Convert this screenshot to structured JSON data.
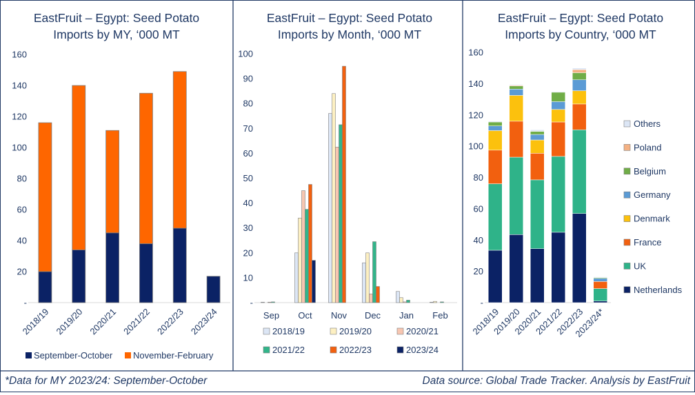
{
  "footer": {
    "note": "*Data for MY 2023/24: September-October",
    "source": "Data source: Global Trade Tracker. Analysis by EastFruit"
  },
  "chart_data": [
    {
      "type": "bar",
      "stacked": true,
      "title_lines": [
        "EastFruit – Egypt: Seed Potato",
        "Imports by MY, ‘000 MT"
      ],
      "categories": [
        "2018/19",
        "2019/20",
        "2020/21",
        "2021/22",
        "2022/23",
        "2023/24"
      ],
      "series": [
        {
          "name": "September-October",
          "color": "#0b2265",
          "values": [
            20,
            34,
            45,
            38,
            48,
            17
          ]
        },
        {
          "name": "November-February",
          "color": "#fe6600",
          "values": [
            96,
            106,
            66,
            97,
            101,
            0
          ]
        }
      ],
      "ylim": [
        0,
        160
      ],
      "yticks": [
        0,
        20,
        40,
        60,
        80,
        100,
        120,
        140,
        160
      ],
      "ytick_labels": [
        "-",
        "20",
        "40",
        "60",
        "80",
        "100",
        "120",
        "140",
        "160"
      ],
      "legend_position": "bottom"
    },
    {
      "type": "bar",
      "title_lines": [
        "EastFruit – Egypt: Seed Potato",
        "Imports by Month, ‘000 MT"
      ],
      "categories": [
        "Sep",
        "Oct",
        "Nov",
        "Dec",
        "Jan",
        "Feb"
      ],
      "series": [
        {
          "name": "2018/19",
          "color": "#dce6f5",
          "values": [
            0.2,
            20,
            76,
            16,
            4.5,
            0.2
          ]
        },
        {
          "name": "2019/20",
          "color": "#fdf0c2",
          "values": [
            0,
            34,
            84,
            20,
            2,
            0.5
          ]
        },
        {
          "name": "2020/21",
          "color": "#f7c6b1",
          "values": [
            0.2,
            45,
            62.5,
            3.5,
            0.3,
            0
          ]
        },
        {
          "name": "2021/22",
          "color": "#32b58a",
          "values": [
            0.3,
            37.5,
            71.5,
            24.5,
            1,
            0.3
          ]
        },
        {
          "name": "2022/23",
          "color": "#f2600f",
          "values": [
            0,
            47.5,
            95,
            6.5,
            0,
            0
          ]
        },
        {
          "name": "2023/24",
          "color": "#0b2265",
          "values": [
            0,
            17,
            0,
            0,
            0,
            0
          ]
        }
      ],
      "ylim": [
        0,
        100
      ],
      "yticks": [
        0,
        10,
        20,
        30,
        40,
        50,
        60,
        70,
        80,
        90,
        100
      ],
      "ytick_labels": [
        "-",
        "10",
        "20",
        "30",
        "40",
        "50",
        "60",
        "70",
        "80",
        "90",
        "100"
      ],
      "legend_position": "bottom"
    },
    {
      "type": "bar",
      "stacked": true,
      "title_lines": [
        "EastFruit – Egypt: Seed Potato",
        "Imports by Country, ‘000 MT"
      ],
      "categories": [
        "2018/19",
        "2019/20",
        "2020/21",
        "2021/22",
        "2022/23",
        "2023/24*"
      ],
      "series": [
        {
          "name": "Netherlands",
          "color": "#0b2265",
          "values": [
            33.5,
            43.5,
            34.5,
            45,
            57,
            1
          ]
        },
        {
          "name": "UK",
          "color": "#2fb389",
          "values": [
            42.5,
            49.5,
            44,
            48.5,
            53.5,
            8
          ]
        },
        {
          "name": "France",
          "color": "#f2600f",
          "values": [
            21.5,
            23,
            17,
            22,
            16.5,
            4.5
          ]
        },
        {
          "name": "Denmark",
          "color": "#fcc10d",
          "values": [
            12.5,
            16.5,
            8.5,
            8,
            8.5,
            0
          ]
        },
        {
          "name": "Germany",
          "color": "#5b9bd5",
          "values": [
            3,
            4,
            3.5,
            5,
            7,
            2
          ]
        },
        {
          "name": "Belgium",
          "color": "#70ad47",
          "values": [
            2.5,
            2,
            2,
            6,
            4.5,
            0.5
          ]
        },
        {
          "name": "Poland",
          "color": "#f4b183",
          "values": [
            0,
            0.5,
            0,
            0,
            2,
            0
          ]
        },
        {
          "name": "Others",
          "color": "#dce6f5",
          "values": [
            0.5,
            0.5,
            1,
            0.5,
            1,
            0.5
          ]
        }
      ],
      "ylim": [
        0,
        160
      ],
      "yticks": [
        0,
        20,
        40,
        60,
        80,
        100,
        120,
        140,
        160
      ],
      "ytick_labels": [
        "-",
        "20",
        "40",
        "60",
        "80",
        "100",
        "120",
        "140",
        "160"
      ],
      "legend_position": "right"
    }
  ]
}
